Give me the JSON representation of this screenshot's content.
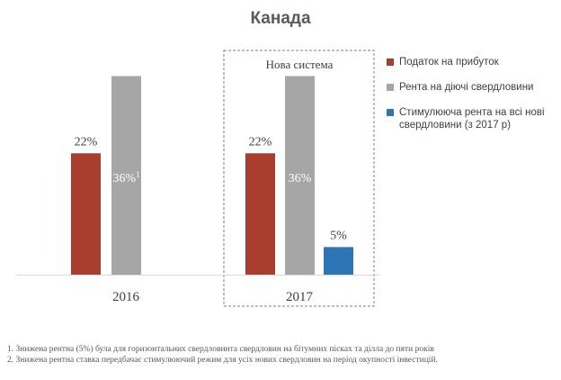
{
  "chart_data": {
    "type": "bar",
    "title": "Канада",
    "categories": [
      "2016",
      "2017"
    ],
    "series": [
      {
        "name": "Податок на прибуток",
        "color": "#A93E2F",
        "values": [
          22,
          22
        ]
      },
      {
        "name": "Рента на діючі свердловини",
        "color": "#A6A6A6",
        "values": [
          36,
          36
        ]
      },
      {
        "name": "Стимулююча рента на всі нові свердловини (з 2017 р)",
        "color": "#2E75B6",
        "values": [
          null,
          5
        ]
      }
    ],
    "data_labels": [
      [
        "22%",
        "22%"
      ],
      [
        "36%",
        "36%"
      ],
      [
        null,
        "5%"
      ]
    ],
    "label_superscript": "1",
    "annotation": "Нова система",
    "ylim": [
      0,
      40
    ],
    "grid": false,
    "legend_position": "right"
  },
  "footnotes": [
    "1. Знижена рентна (5%) була для горизонтальних свердловинта свердловин на бітумних пісках та ділла до пяти років",
    "2. Знижена рентна ставка передбачає стимулюючий режим для усіх нових свердловин на період окупності інвестицій."
  ]
}
